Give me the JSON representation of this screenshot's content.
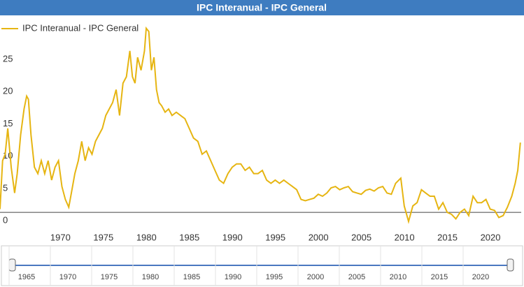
{
  "chart_data": {
    "type": "line",
    "title": "IPC Interanual - IPC General",
    "series": [
      {
        "name": "IPC Interanual - IPC General",
        "color": "#e6b512",
        "x": [
          1962,
          1962.3,
          1962.6,
          1962.9,
          1963.3,
          1963.7,
          1964.0,
          1964.4,
          1964.8,
          1965.1,
          1965.3,
          1965.6,
          1966.0,
          1966.4,
          1966.8,
          1967.2,
          1967.6,
          1968.0,
          1968.4,
          1968.8,
          1969.2,
          1969.6,
          1970.0,
          1970.3,
          1970.7,
          1971.1,
          1971.5,
          1971.9,
          1972.3,
          1972.7,
          1973.1,
          1973.5,
          1973.9,
          1974.3,
          1974.7,
          1975.1,
          1975.5,
          1975.9,
          1976.3,
          1976.7,
          1977.1,
          1977.4,
          1977.7,
          1978.0,
          1978.4,
          1978.8,
          1979.0,
          1979.3,
          1979.6,
          1979.9,
          1980.2,
          1980.5,
          1980.8,
          1981.2,
          1981.6,
          1982.0,
          1982.5,
          1983.0,
          1983.5,
          1984.0,
          1984.5,
          1985.0,
          1985.5,
          1986.0,
          1986.5,
          1987.0,
          1987.5,
          1988.0,
          1988.5,
          1989.0,
          1989.5,
          1990.0,
          1990.5,
          1991.0,
          1991.5,
          1992.0,
          1992.5,
          1993.0,
          1993.5,
          1994.0,
          1994.5,
          1995.0,
          1995.5,
          1996.0,
          1996.5,
          1997.0,
          1997.5,
          1998.0,
          1998.5,
          1999.0,
          1999.5,
          2000.0,
          2000.5,
          2001.0,
          2001.5,
          2002.0,
          2002.5,
          2003.0,
          2003.5,
          2004.0,
          2004.5,
          2005.0,
          2005.5,
          2006.0,
          2006.5,
          2007.0,
          2007.5,
          2008.0,
          2008.6,
          2009.0,
          2009.5,
          2010.0,
          2010.5,
          2011.0,
          2011.5,
          2012.0,
          2012.5,
          2013.0,
          2013.5,
          2014.0,
          2014.5,
          2015.0,
          2015.5,
          2016.0,
          2016.5,
          2017.0,
          2017.5,
          2018.0,
          2018.5,
          2019.0,
          2019.5,
          2020.0,
          2020.5,
          2021.0,
          2021.5,
          2021.9,
          2022.2,
          2022.5
        ],
        "values": [
          0.5,
          8,
          9,
          13,
          7,
          3,
          6,
          12,
          16,
          18,
          17.5,
          12,
          7,
          6,
          8,
          6,
          8,
          5,
          7,
          8,
          4,
          2,
          0.8,
          3,
          6,
          8,
          11,
          8,
          10,
          9,
          11,
          12,
          13,
          15,
          16,
          17,
          19,
          15,
          20,
          21,
          25,
          21,
          20,
          24,
          22,
          25,
          28.5,
          28,
          22,
          24,
          19,
          17,
          16.5,
          15.5,
          16,
          15,
          15.5,
          15,
          14.5,
          13,
          11.5,
          11,
          9,
          9.5,
          8,
          6.5,
          5,
          4.5,
          6,
          7,
          7.5,
          7.5,
          6.5,
          7,
          6,
          6,
          6.5,
          5,
          4.5,
          5,
          4.5,
          5,
          4.5,
          4,
          3.5,
          2,
          1.8,
          2,
          2.2,
          2.8,
          2.5,
          3,
          3.8,
          4,
          3.5,
          3.8,
          4,
          3.2,
          3,
          2.8,
          3.4,
          3.6,
          3.3,
          3.8,
          4,
          3,
          2.8,
          4.5,
          5.3,
          1,
          -1.4,
          1,
          1.5,
          3.5,
          3,
          2.5,
          2.5,
          0.5,
          1.5,
          0,
          -0.3,
          -1,
          0,
          0.5,
          -0.5,
          2.5,
          1.5,
          1.5,
          2,
          0.5,
          0.3,
          -0.8,
          -0.5,
          0.8,
          2.5,
          4.5,
          6.5,
          10.8
        ]
      }
    ],
    "xlim": [
      1962,
      2022.6
    ],
    "xticks": [
      1970,
      1975,
      1980,
      1985,
      1990,
      1995,
      2000,
      2005,
      2010,
      2015,
      2020
    ],
    "ylim": [
      -2.8,
      30.5
    ],
    "yticks": [
      0,
      5,
      10,
      15,
      20,
      25
    ],
    "grid": false,
    "navigator_xticks": [
      1965,
      1970,
      1975,
      1980,
      1985,
      1990,
      1995,
      2000,
      2005,
      2010,
      2015,
      2020
    ]
  }
}
